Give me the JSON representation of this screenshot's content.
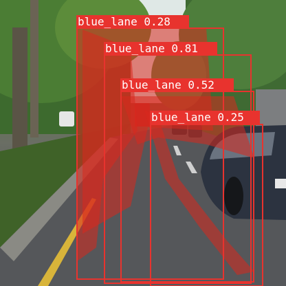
{
  "box_color": "#e8332e",
  "mask_color": "#d8281e",
  "detections": [
    {
      "class": "blue_lane",
      "score": "0.28",
      "text": "blue_lane 0.28"
    },
    {
      "class": "blue_lane",
      "score": "0.81",
      "text": "blue_lane 0.81"
    },
    {
      "class": "blue_lane",
      "score": "0.52",
      "text": "blue_lane 0.52"
    },
    {
      "class": "blue_lane",
      "score": "0.25",
      "text": "blue_lane 0.25"
    }
  ]
}
